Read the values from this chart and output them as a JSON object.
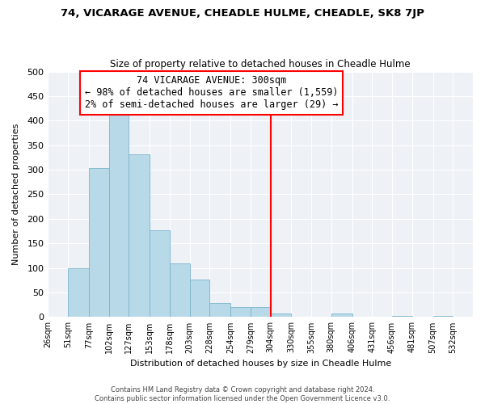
{
  "title": "74, VICARAGE AVENUE, CHEADLE HULME, CHEADLE, SK8 7JP",
  "subtitle": "Size of property relative to detached houses in Cheadle Hulme",
  "xlabel": "Distribution of detached houses by size in Cheadle Hulme",
  "ylabel": "Number of detached properties",
  "bin_labels": [
    "26sqm",
    "51sqm",
    "77sqm",
    "102sqm",
    "127sqm",
    "153sqm",
    "178sqm",
    "203sqm",
    "228sqm",
    "254sqm",
    "279sqm",
    "304sqm",
    "330sqm",
    "355sqm",
    "380sqm",
    "406sqm",
    "431sqm",
    "456sqm",
    "481sqm",
    "507sqm",
    "532sqm"
  ],
  "bin_edges": [
    26,
    51,
    77,
    102,
    127,
    153,
    178,
    203,
    228,
    254,
    279,
    304,
    330,
    355,
    380,
    406,
    431,
    456,
    481,
    507,
    532,
    557
  ],
  "bar_heights": [
    0,
    99,
    303,
    412,
    332,
    177,
    110,
    76,
    28,
    20,
    20,
    8,
    0,
    0,
    8,
    0,
    0,
    2,
    0,
    2,
    0
  ],
  "bar_color": "#b8d9e8",
  "bar_edge_color": "#7ab3cc",
  "property_line_x": 304,
  "property_line_color": "red",
  "ylim": [
    0,
    500
  ],
  "yticks": [
    0,
    50,
    100,
    150,
    200,
    250,
    300,
    350,
    400,
    450,
    500
  ],
  "annotation_title": "74 VICARAGE AVENUE: 300sqm",
  "annotation_line1": "← 98% of detached houses are smaller (1,559)",
  "annotation_line2": "2% of semi-detached houses are larger (29) →",
  "footer_line1": "Contains HM Land Registry data © Crown copyright and database right 2024.",
  "footer_line2": "Contains public sector information licensed under the Open Government Licence v3.0.",
  "bg_color": "#eef2f7"
}
